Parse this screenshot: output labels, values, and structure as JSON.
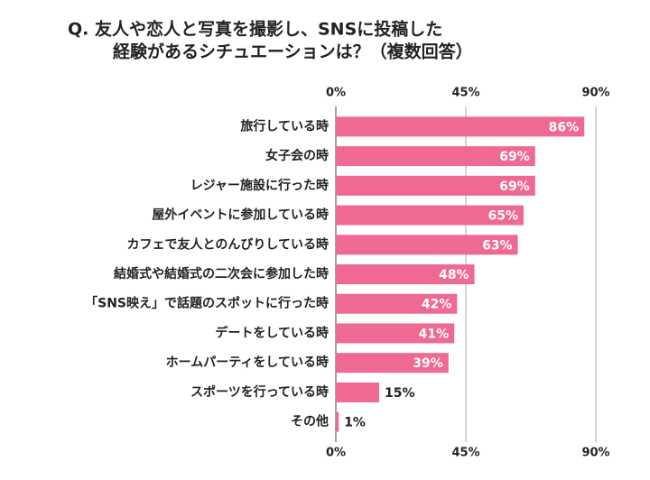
{
  "chart_data": {
    "type": "barh",
    "title": [
      "Q.  友人や恋人と写真を撮影し、SNSに投稿した",
      "経験があるシチュエーションは？（複数回答）"
    ],
    "categories": [
      "旅行している時",
      "女子会の時",
      "レジャー施設に行った時",
      "屋外イベントに参加している時",
      "カフェで友人とのんびりしている時",
      "結婚式や結婚式の二次会に参加した時",
      "「SNS映え」で話題のスポットに行った時",
      "デートをしている時",
      "ホームパーティをしている時",
      "スポーツを行っている時",
      "その他"
    ],
    "values": [
      86,
      69,
      69,
      65,
      63,
      48,
      42,
      41,
      39,
      15,
      1
    ],
    "value_labels": [
      "86%",
      "69%",
      "69%",
      "65%",
      "63%",
      "48%",
      "42%",
      "41%",
      "39%",
      "15%",
      "1%"
    ],
    "color": "#ee6a93",
    "xlim": [
      0,
      90
    ],
    "xticks": [
      {
        "value": 0,
        "label": "0%"
      },
      {
        "value": 45,
        "label": "45%"
      },
      {
        "value": 90,
        "label": "90%"
      }
    ],
    "grid": true
  }
}
